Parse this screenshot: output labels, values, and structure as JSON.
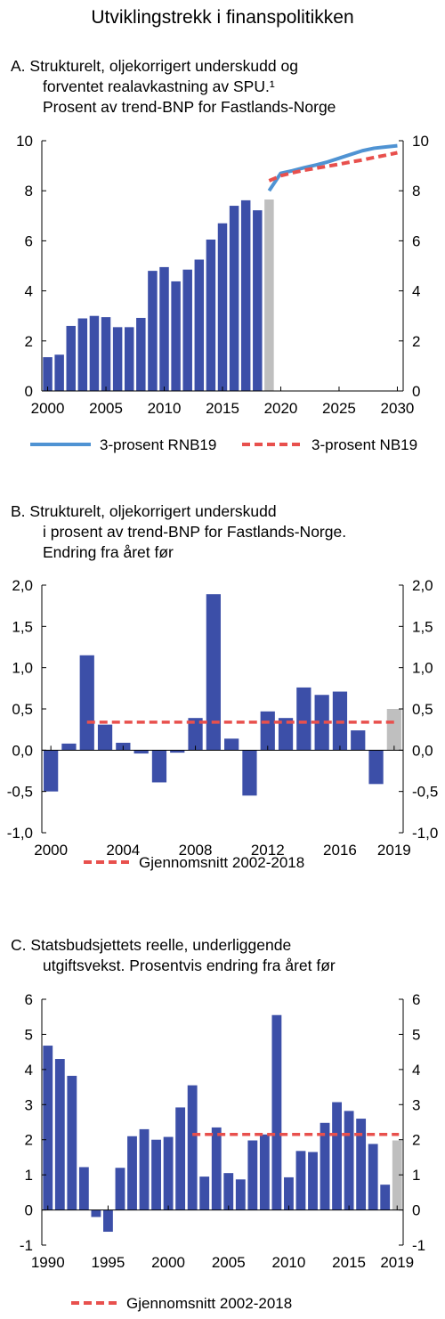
{
  "figure_title": "Utviklingstrekk i finanspolitikken",
  "colors": {
    "bar": "#3c4fa8",
    "bar_projected": "#bfbfbf",
    "line_rnb19": "#4f93d3",
    "line_nb19": "#e8504d",
    "avg_line": "#e8504d"
  },
  "chart_data": [
    {
      "id": "A",
      "type": "bar+line",
      "title_lines": [
        "A.  Strukturelt, oljekorrigert underskudd og",
        "forventet realavkastning av SPU.¹",
        "Prosent av trend-BNP for Fastlands-Norge"
      ],
      "ylim": [
        0,
        10
      ],
      "yticks": [
        "0",
        "2",
        "4",
        "6",
        "8",
        "10"
      ],
      "yticks_right": [
        "0",
        "2",
        "4",
        "6",
        "8",
        "10"
      ],
      "xlim": [
        1999.5,
        2030.5
      ],
      "xticks": [
        "2000",
        "2005",
        "2010",
        "2015",
        "2020",
        "2025",
        "2030"
      ],
      "bars": {
        "x": [
          2000,
          2001,
          2002,
          2003,
          2004,
          2005,
          2006,
          2007,
          2008,
          2009,
          2010,
          2011,
          2012,
          2013,
          2014,
          2015,
          2016,
          2017,
          2018,
          2019
        ],
        "values": [
          1.35,
          1.45,
          2.6,
          2.9,
          3.0,
          2.95,
          2.55,
          2.55,
          2.92,
          4.8,
          4.95,
          4.38,
          4.85,
          5.25,
          6.05,
          6.7,
          7.4,
          7.62,
          7.22,
          7.65
        ],
        "projected_from": 2019
      },
      "series": [
        {
          "name": "3-prosent RNB19",
          "style": "solid",
          "x": [
            2019,
            2020,
            2021,
            2022,
            2023,
            2024,
            2025,
            2026,
            2027,
            2028,
            2029,
            2030
          ],
          "values": [
            8.0,
            8.7,
            8.8,
            8.92,
            9.03,
            9.15,
            9.3,
            9.45,
            9.6,
            9.7,
            9.75,
            9.8
          ]
        },
        {
          "name": "3-prosent NB19",
          "style": "dashed",
          "x": [
            2019,
            2020,
            2021,
            2022,
            2023,
            2024,
            2025,
            2026,
            2027,
            2028,
            2029,
            2030
          ],
          "values": [
            8.4,
            8.6,
            8.72,
            8.82,
            8.9,
            8.98,
            9.06,
            9.15,
            9.23,
            9.33,
            9.42,
            9.52
          ]
        }
      ]
    },
    {
      "id": "B",
      "type": "bar",
      "title_lines": [
        "B.  Strukturelt, oljekorrigert underskudd",
        "i prosent av trend-BNP for Fastlands-Norge.",
        "Endring fra året før"
      ],
      "ylim": [
        -1.0,
        2.0
      ],
      "yticks": [
        "-1,0",
        "-0,5",
        "0,0",
        "0,5",
        "1,0",
        "1,5",
        "2,0"
      ],
      "yticks_right": [
        "-1,0",
        "-0,5",
        "0,0",
        "0,5",
        "1,0",
        "1,5",
        "2,0"
      ],
      "xlim": [
        1999.5,
        2019.5
      ],
      "xticks": [
        "2000",
        "2004",
        "2008",
        "2012",
        "2016",
        "2019"
      ],
      "bars": {
        "x": [
          2000,
          2001,
          2002,
          2003,
          2004,
          2005,
          2006,
          2007,
          2008,
          2009,
          2010,
          2011,
          2012,
          2013,
          2014,
          2015,
          2016,
          2017,
          2018,
          2019
        ],
        "values": [
          -0.5,
          0.08,
          1.15,
          0.31,
          0.09,
          -0.04,
          -0.39,
          -0.03,
          0.39,
          1.89,
          0.14,
          -0.55,
          0.47,
          0.39,
          0.76,
          0.67,
          0.71,
          0.24,
          -0.41,
          0.5
        ],
        "projected_from": 2019
      },
      "average": {
        "name": "Gjennomsnitt 2002-2018",
        "value": 0.34,
        "from": 2002,
        "to": 2019
      }
    },
    {
      "id": "C",
      "type": "bar",
      "title_lines": [
        "C.  Statsbudsjettets reelle, underliggende",
        "utgiftsvekst. Prosentvis endring fra året før"
      ],
      "ylim": [
        -1,
        6
      ],
      "yticks": [
        "-1",
        "0",
        "1",
        "2",
        "3",
        "4",
        "5",
        "6"
      ],
      "yticks_right": [
        "-1",
        "0",
        "1",
        "2",
        "3",
        "4",
        "5",
        "6"
      ],
      "xlim": [
        1989.5,
        2019.5
      ],
      "xticks": [
        "1990",
        "1995",
        "2000",
        "2005",
        "2010",
        "2015",
        "2019"
      ],
      "bars": {
        "x": [
          1990,
          1991,
          1992,
          1993,
          1994,
          1995,
          1996,
          1997,
          1998,
          1999,
          2000,
          2001,
          2002,
          2003,
          2004,
          2005,
          2006,
          2007,
          2008,
          2009,
          2010,
          2011,
          2012,
          2013,
          2014,
          2015,
          2016,
          2017,
          2018,
          2019
        ],
        "values": [
          4.68,
          4.3,
          3.82,
          1.22,
          -0.2,
          -0.62,
          1.2,
          2.1,
          2.3,
          2.0,
          2.08,
          2.92,
          3.55,
          0.95,
          2.35,
          1.05,
          0.87,
          1.98,
          2.15,
          5.55,
          0.93,
          1.68,
          1.65,
          2.48,
          3.07,
          2.82,
          2.6,
          1.88,
          0.72,
          1.98
        ],
        "projected_from": 2019
      },
      "average": {
        "name": "Gjennomsnitt 2002-2018",
        "value": 2.15,
        "from": 2002,
        "to": 2019
      }
    }
  ]
}
